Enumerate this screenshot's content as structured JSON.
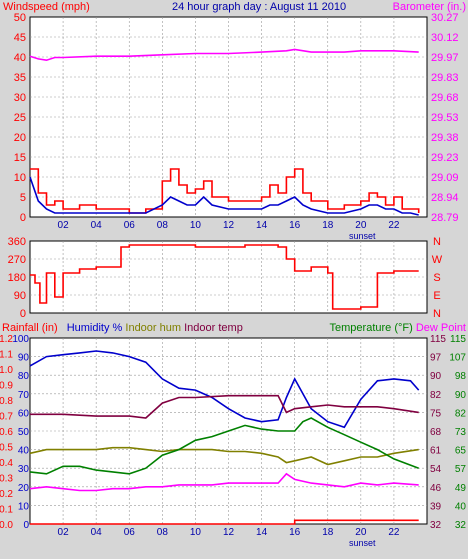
{
  "chart_data": [
    {
      "type": "line",
      "title": "24 hour graph day : August 11 2010",
      "y_left_label": "Windspeed (mph)",
      "y_right_label": "Barometer (in.)",
      "ylim_left": [
        0,
        50
      ],
      "ylim_right": [
        28.79,
        30.27
      ],
      "y_left_ticks": [
        "50",
        "45",
        "40",
        "35",
        "30",
        "25",
        "20",
        "15",
        "10",
        "5",
        "0"
      ],
      "y_right_ticks": [
        "30.27",
        "30.12",
        "29.97",
        "29.83",
        "29.68",
        "29.53",
        "29.38",
        "29.23",
        "29.09",
        "28.94",
        "28.79"
      ],
      "x_ticks": [
        "02",
        "04",
        "06",
        "08",
        "10",
        "12",
        "14",
        "16",
        "18",
        "20",
        "22"
      ],
      "x_annotation": "sunset",
      "grid": true,
      "colors": {
        "wind_gust": "#ff0000",
        "wind_avg": "#0000cc",
        "barometer": "#ff00ff"
      },
      "series": [
        {
          "key": "barometer",
          "axis": "right",
          "x": [
            0,
            0.5,
            1,
            1.5,
            2,
            4,
            6,
            8,
            10,
            12,
            14,
            15.5,
            16,
            17,
            18,
            19,
            20,
            21,
            22,
            23.5
          ],
          "values": [
            29.98,
            29.96,
            29.95,
            29.97,
            29.97,
            29.98,
            29.98,
            29.99,
            30.0,
            30.0,
            30.01,
            30.02,
            30.03,
            30.01,
            30.01,
            30.01,
            30.02,
            30.02,
            30.02,
            30.01
          ]
        },
        {
          "key": "wind_gust",
          "axis": "left",
          "x": [
            0,
            0.5,
            1,
            1.5,
            2,
            3,
            4,
            5,
            6,
            7,
            8,
            8.5,
            9,
            9.5,
            10,
            10.5,
            11,
            12,
            13,
            14,
            14.5,
            15,
            15.5,
            16,
            16.5,
            17,
            18,
            19,
            20,
            20.5,
            21,
            21.5,
            22,
            22.5,
            23,
            23.5
          ],
          "values": [
            12,
            6,
            3,
            4,
            2,
            3,
            2,
            2,
            1,
            2,
            9,
            12,
            8,
            6,
            7,
            9,
            5,
            4,
            4,
            5,
            8,
            6,
            10,
            12,
            6,
            4,
            2,
            3,
            4,
            6,
            5,
            3,
            5,
            2,
            2,
            1
          ]
        },
        {
          "key": "wind_avg",
          "axis": "left",
          "x": [
            0,
            0.5,
            1,
            1.5,
            2,
            3,
            4,
            5,
            6,
            7,
            8,
            8.5,
            9,
            9.5,
            10,
            10.5,
            11,
            12,
            13,
            14,
            14.5,
            15,
            15.5,
            16,
            16.5,
            17,
            18,
            19,
            20,
            20.5,
            21,
            21.5,
            22,
            22.5,
            23,
            23.5
          ],
          "values": [
            10,
            4,
            2,
            1,
            1,
            1,
            1,
            1,
            1,
            1,
            3,
            5,
            4,
            3,
            3,
            5,
            3,
            2,
            2,
            2,
            3,
            3,
            4,
            5,
            3,
            2,
            1,
            1,
            2,
            3,
            3,
            2,
            2,
            1,
            1,
            0.5
          ]
        }
      ]
    },
    {
      "type": "line",
      "y_left_ticks": [
        "360",
        "270",
        "180",
        "90",
        "0"
      ],
      "y_right_ticks": [
        "N",
        "W",
        "S",
        "E",
        "N"
      ],
      "ylim": [
        0,
        360
      ],
      "grid": true,
      "colors": {
        "direction": "#ff0000"
      },
      "series": [
        {
          "key": "wind_direction",
          "x": [
            0,
            0.3,
            0.6,
            1,
            1.5,
            2,
            3,
            4,
            5,
            5.5,
            6,
            7,
            8,
            9,
            10,
            11,
            12,
            13,
            14,
            15,
            15.5,
            16,
            17,
            18,
            18.3,
            19,
            20,
            21,
            22,
            23.5
          ],
          "values": [
            190,
            150,
            50,
            200,
            80,
            200,
            220,
            230,
            230,
            330,
            340,
            340,
            340,
            340,
            330,
            330,
            330,
            340,
            340,
            330,
            270,
            210,
            230,
            200,
            20,
            20,
            30,
            200,
            210,
            210
          ]
        }
      ]
    },
    {
      "type": "line",
      "y_left_label_parts": [
        "Rainfall (in)",
        "Humidity %",
        "Indoor hum",
        "Indoor temp"
      ],
      "y_right_label_parts": [
        "Temperature (°F)",
        "Dew Point"
      ],
      "y_rain_ticks": [
        "1.2",
        "1.1",
        "1.0",
        "0.9",
        "0.8",
        "0.7",
        "0.6",
        "0.5",
        "0.4",
        "0.3",
        "0.2",
        "0.1",
        "0.0"
      ],
      "y_hum_ticks": [
        "100",
        "90",
        "80",
        "70",
        "60",
        "50",
        "40",
        "30",
        "20",
        "10",
        "0"
      ],
      "y_temp_in_ticks": [
        "115",
        "97",
        "90",
        "82",
        "75",
        "68",
        "61",
        "54",
        "46",
        "39",
        "32"
      ],
      "y_temp_ticks": [
        "115",
        "107",
        "98",
        "90",
        "82",
        "73",
        "65",
        "57",
        "49",
        "40",
        "32"
      ],
      "ylim_humidity": [
        0,
        100
      ],
      "ylim_temperature": [
        32,
        115
      ],
      "x_ticks": [
        "02",
        "04",
        "06",
        "08",
        "10",
        "12",
        "14",
        "16",
        "18",
        "20",
        "22"
      ],
      "x_annotation": "sunset",
      "grid": true,
      "colors": {
        "rain": "#ff0000",
        "humidity": "#0000cc",
        "indoor_hum": "#808000",
        "indoor_temp": "#800040",
        "temperature": "#008000",
        "dew_point": "#ff00ff"
      },
      "series": [
        {
          "key": "humidity",
          "axis": "humidity",
          "x": [
            0,
            1,
            2,
            3,
            4,
            5,
            6,
            7,
            8,
            9,
            10,
            11,
            12,
            13,
            14,
            15,
            15.5,
            16,
            17,
            18,
            19,
            20,
            21,
            22,
            23,
            23.5
          ],
          "values": [
            85,
            90,
            91,
            92,
            93,
            92,
            90,
            87,
            78,
            73,
            72,
            68,
            62,
            57,
            55,
            56,
            68,
            78,
            62,
            55,
            52,
            67,
            77,
            78,
            77,
            72
          ]
        },
        {
          "key": "indoor_temp",
          "axis": "humidity",
          "x": [
            0,
            2,
            4,
            6,
            7,
            8,
            9,
            10,
            12,
            14,
            15,
            15.5,
            16,
            17,
            18,
            19,
            20,
            21,
            22,
            23.5
          ],
          "values": [
            59,
            59,
            58,
            58,
            57,
            65,
            68,
            68,
            69,
            69,
            69,
            60,
            62,
            63,
            64,
            63,
            63,
            63,
            62,
            60
          ]
        },
        {
          "key": "indoor_hum",
          "axis": "humidity",
          "x": [
            0,
            1,
            2,
            4,
            5,
            6,
            7,
            8,
            9,
            10,
            11,
            12,
            13,
            14,
            15,
            15.5,
            16,
            17,
            18,
            19,
            20,
            21,
            22,
            23.5
          ],
          "values": [
            38,
            40,
            40,
            40,
            41,
            41,
            40,
            39,
            40,
            40,
            40,
            39,
            39,
            38,
            36,
            33,
            34,
            36,
            32,
            34,
            36,
            36,
            38,
            40
          ]
        },
        {
          "key": "temperature",
          "axis": "humidity",
          "x": [
            0,
            1,
            2,
            3,
            4,
            5,
            6,
            7,
            8,
            9,
            10,
            11,
            12,
            13,
            14,
            15,
            16,
            16.5,
            17,
            18,
            19,
            20,
            21,
            22,
            23.5
          ],
          "values": [
            28,
            27,
            31,
            31,
            29,
            28,
            27,
            30,
            37,
            40,
            45,
            47,
            50,
            53,
            51,
            50,
            50,
            55,
            57,
            52,
            48,
            44,
            40,
            35,
            30
          ]
        },
        {
          "key": "dew_point",
          "axis": "humidity",
          "x": [
            0,
            1,
            2,
            3,
            4,
            5,
            6,
            7,
            8,
            9,
            10,
            11,
            12,
            13,
            14,
            15,
            15.5,
            16,
            17,
            18,
            19,
            20,
            21,
            22,
            23.5
          ],
          "values": [
            19,
            20,
            19,
            18,
            18,
            19,
            19,
            20,
            20,
            21,
            21,
            21,
            22,
            22,
            22,
            22,
            27,
            24,
            22,
            21,
            20,
            22,
            21,
            22,
            21
          ]
        },
        {
          "key": "rain",
          "axis": "humidity",
          "x": [
            0,
            15.5,
            16,
            23.5
          ],
          "values": [
            0,
            0,
            2,
            2
          ]
        }
      ]
    }
  ]
}
